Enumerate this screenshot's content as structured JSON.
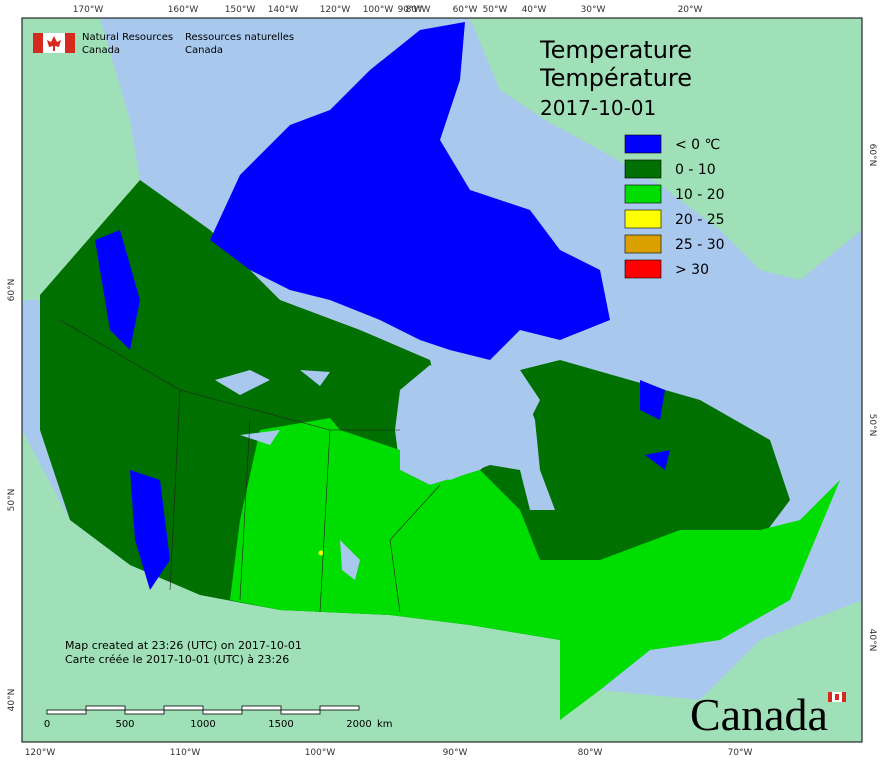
{
  "header": {
    "agency_en": [
      "Natural Resources",
      "Canada"
    ],
    "agency_fr": [
      "Ressources naturelles",
      "Canada"
    ]
  },
  "title": {
    "en": "Temperature",
    "fr": "Température",
    "date": "2017-10-01"
  },
  "legend": [
    {
      "label": "< 0 ℃",
      "color": "#0000ff"
    },
    {
      "label": "0 - 10",
      "color": "#007000"
    },
    {
      "label": "10 - 20",
      "color": "#00dd00"
    },
    {
      "label": "20 - 25",
      "color": "#ffff00"
    },
    {
      "label": "25 - 30",
      "color": "#d9a000"
    },
    {
      "label": "> 30",
      "color": "#ff0000"
    }
  ],
  "graticule": {
    "top": [
      "170°W",
      "160°W",
      "150°W",
      "140°W",
      "120°W",
      "100°W",
      "90°W",
      "80°W",
      "60°W",
      "50°W",
      "40°W",
      "30°W",
      "20°W"
    ],
    "bottom": [
      "120°W",
      "110°W",
      "100°W",
      "90°W",
      "80°W",
      "70°W"
    ],
    "left": [
      "60°N",
      "50°N",
      "40°N"
    ],
    "right": [
      "60°N",
      "50°N",
      "40°N"
    ]
  },
  "notes": [
    "Map created at 23:26 (UTC) on 2017-10-01",
    "Carte créée le 2017-10-01 (UTC) à 23:26"
  ],
  "scale_bar": {
    "labels": [
      "0",
      "500",
      "1000",
      "1500",
      "2000"
    ],
    "unit": "km"
  },
  "wordmark": "Canada"
}
